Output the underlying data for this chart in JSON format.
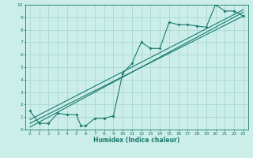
{
  "xlabel": "Humidex (Indice chaleur)",
  "bg_color": "#cceee8",
  "grid_color": "#aad8d2",
  "line_color": "#1a7a6e",
  "xlim": [
    -0.5,
    23.5
  ],
  "ylim": [
    0,
    10
  ],
  "xticks": [
    0,
    1,
    2,
    3,
    4,
    5,
    6,
    7,
    8,
    9,
    10,
    11,
    12,
    13,
    14,
    15,
    16,
    17,
    18,
    19,
    20,
    21,
    22,
    23
  ],
  "yticks": [
    0,
    1,
    2,
    3,
    4,
    5,
    6,
    7,
    8,
    9,
    10
  ],
  "scatter_x": [
    0,
    1,
    2,
    3,
    4,
    5,
    5.5,
    6,
    7,
    8,
    9,
    10,
    11,
    12,
    13,
    14,
    15,
    16,
    17,
    18,
    19,
    20,
    21,
    22,
    23
  ],
  "scatter_y": [
    1.5,
    0.5,
    0.5,
    1.3,
    1.2,
    1.2,
    0.3,
    0.3,
    0.9,
    0.9,
    1.1,
    4.5,
    5.3,
    7.0,
    6.5,
    6.5,
    8.6,
    8.4,
    8.4,
    8.3,
    8.2,
    10.0,
    9.5,
    9.5,
    9.1
  ],
  "line1_x": [
    0,
    23
  ],
  "line1_y": [
    0.5,
    9.1
  ],
  "line2_x": [
    0,
    23
  ],
  "line2_y": [
    0.2,
    9.4
  ],
  "line3_x": [
    0,
    23
  ],
  "line3_y": [
    0.8,
    9.6
  ]
}
